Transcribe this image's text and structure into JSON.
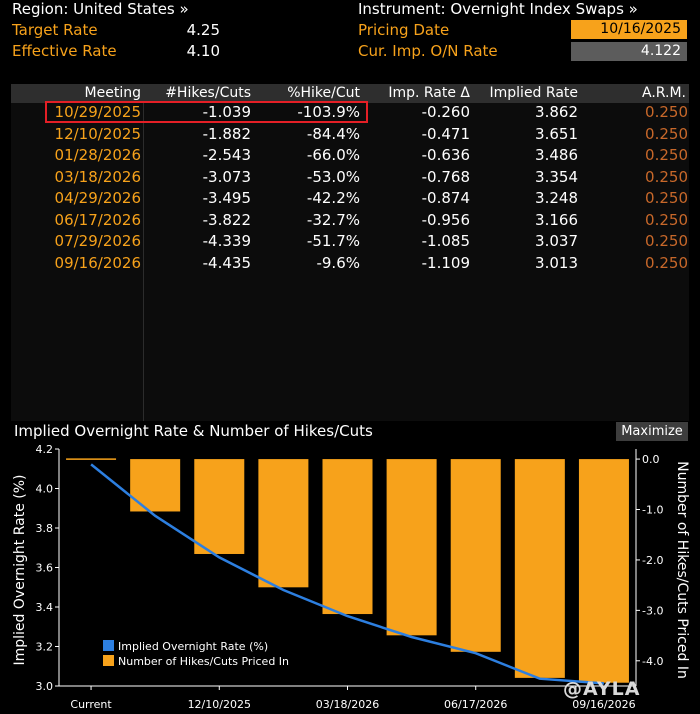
{
  "header": {
    "region_label": "Region: United States »",
    "target_rate_label": "Target Rate",
    "target_rate_value": "4.25",
    "effective_rate_label": "Effective Rate",
    "effective_rate_value": "4.10",
    "instrument_label": "Instrument: Overnight Index Swaps »",
    "pricing_date_label": "Pricing Date",
    "pricing_date_value": "10/16/2025",
    "cur_imp_label": "Cur. Imp. O/N Rate",
    "cur_imp_value": "4.122"
  },
  "table": {
    "columns": [
      "Meeting",
      "#Hikes/Cuts",
      "%Hike/Cut",
      "Imp. Rate Δ",
      "Implied Rate",
      "A.R.M."
    ],
    "rows": [
      {
        "meeting": "10/29/2025",
        "hikes": "-1.039",
        "pct": "-103.9%",
        "delta": "-0.260",
        "implied": "3.862",
        "arm": "0.250"
      },
      {
        "meeting": "12/10/2025",
        "hikes": "-1.882",
        "pct": "-84.4%",
        "delta": "-0.471",
        "implied": "3.651",
        "arm": "0.250"
      },
      {
        "meeting": "01/28/2026",
        "hikes": "-2.543",
        "pct": "-66.0%",
        "delta": "-0.636",
        "implied": "3.486",
        "arm": "0.250"
      },
      {
        "meeting": "03/18/2026",
        "hikes": "-3.073",
        "pct": "-53.0%",
        "delta": "-0.768",
        "implied": "3.354",
        "arm": "0.250"
      },
      {
        "meeting": "04/29/2026",
        "hikes": "-3.495",
        "pct": "-42.2%",
        "delta": "-0.874",
        "implied": "3.248",
        "arm": "0.250"
      },
      {
        "meeting": "06/17/2026",
        "hikes": "-3.822",
        "pct": "-32.7%",
        "delta": "-0.956",
        "implied": "3.166",
        "arm": "0.250"
      },
      {
        "meeting": "07/29/2026",
        "hikes": "-4.339",
        "pct": "-51.7%",
        "delta": "-1.085",
        "implied": "3.037",
        "arm": "0.250"
      },
      {
        "meeting": "09/16/2026",
        "hikes": "-4.435",
        "pct": "-9.6%",
        "delta": "-1.109",
        "implied": "3.013",
        "arm": "0.250"
      }
    ]
  },
  "chart_panel": {
    "title": "Implied Overnight Rate & Number of Hikes/Cuts",
    "maximize_label": "Maximize",
    "watermark": "@AYLA"
  },
  "chart_data": {
    "type": "bar",
    "categories": [
      "Current",
      "10/29/2025",
      "12/10/2025",
      "01/28/2026",
      "03/18/2026",
      "04/29/2026",
      "06/17/2026",
      "07/29/2026",
      "09/16/2026"
    ],
    "x_tick_labels": [
      "Current",
      "12/10/2025",
      "03/18/2026",
      "06/17/2026",
      "09/16/2026"
    ],
    "series": [
      {
        "name": "Implied Overnight Rate (%)",
        "type": "line",
        "axis": "left",
        "color": "#2d7fe0",
        "values": [
          4.122,
          3.862,
          3.651,
          3.486,
          3.354,
          3.248,
          3.166,
          3.037,
          3.013
        ]
      },
      {
        "name": "Number of Hikes/Cuts Priced In",
        "type": "bar",
        "axis": "right",
        "color": "#f7a21b",
        "values": [
          0,
          -1.039,
          -1.882,
          -2.543,
          -3.073,
          -3.495,
          -3.822,
          -4.339,
          -4.435
        ]
      }
    ],
    "ylabel": "Implied Overnight Rate (%)",
    "ylabel_right": "Number of Hikes/Cuts Priced In",
    "ylim": [
      3.0,
      4.2
    ],
    "y_ticks": [
      "4.2",
      "4.0",
      "3.8",
      "3.6",
      "3.4",
      "3.2",
      "3.0"
    ],
    "ylim_right": [
      -4.5,
      0.2
    ],
    "y_ticks_right": [
      "0.0",
      "-1.0",
      "-2.0",
      "-3.0",
      "-4.0"
    ],
    "legend_position": "bottom-left",
    "grid": false
  }
}
